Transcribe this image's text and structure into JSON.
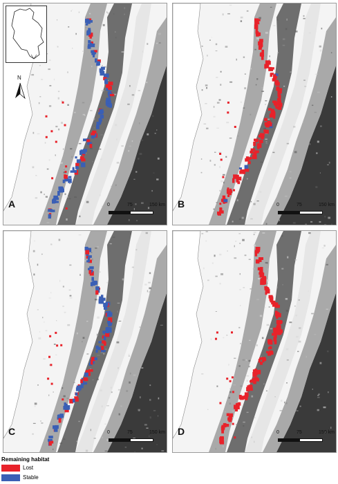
{
  "colors": {
    "lost": "#e8222a",
    "stable": "#3a5fb5",
    "relief_light": "#e6e6e6",
    "relief_mid": "#a9a9a9",
    "relief_dark": "#6e6e6e",
    "relief_darkest": "#3a3a3a",
    "lowland": "#ffffff"
  },
  "panels": [
    {
      "letter": "A",
      "stable_level": 0.75,
      "lost_level": 0.25
    },
    {
      "letter": "B",
      "stable_level": 0.05,
      "lost_level": 0.95
    },
    {
      "letter": "C",
      "stable_level": 0.65,
      "lost_level": 0.35
    },
    {
      "letter": "D",
      "stable_level": 0.0,
      "lost_level": 1.0
    }
  ],
  "north_arrow": {
    "label": "N",
    "icon": "north-arrow-icon"
  },
  "inset_map": {
    "icon": "colombia-outline-icon"
  },
  "scale_bar": {
    "ticks": [
      "0",
      "75",
      "150 km"
    ]
  },
  "legend": {
    "title": "Remaining habitat",
    "items": [
      {
        "label": "Lost",
        "color": "#e8222a"
      },
      {
        "label": "Stable",
        "color": "#3a5fb5"
      }
    ]
  }
}
